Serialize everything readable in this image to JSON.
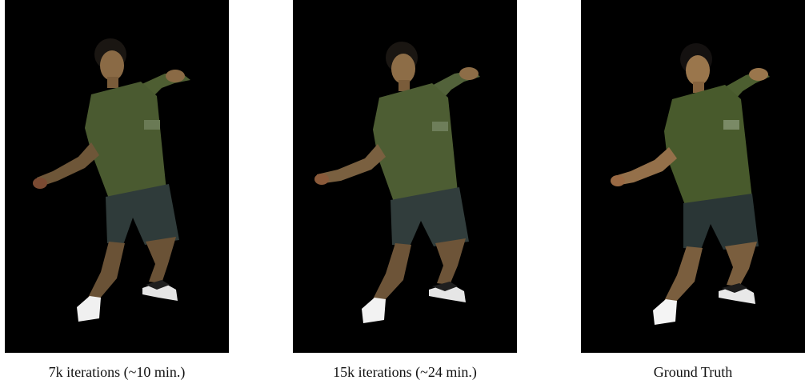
{
  "figure": {
    "panels": [
      {
        "caption": "7k iterations (~10 min.)",
        "content": "person-figure"
      },
      {
        "caption": "15k iterations (~24 min.)",
        "content": "person-figure"
      },
      {
        "caption": "Ground Truth",
        "content": "person-figure"
      }
    ]
  }
}
